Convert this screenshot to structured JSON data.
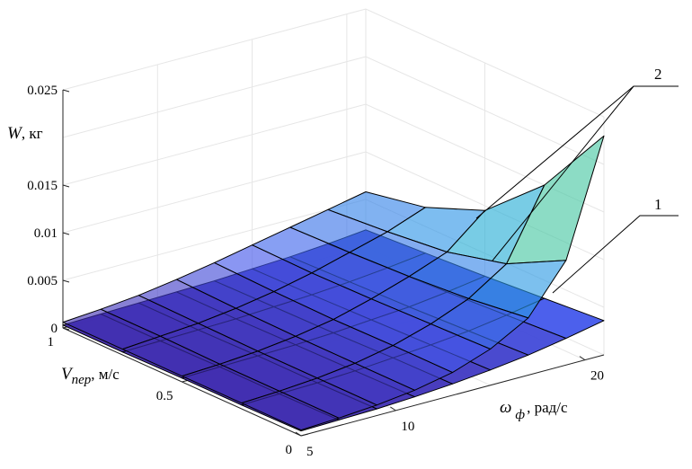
{
  "chart_data": {
    "type": "surface",
    "z_axis": {
      "label_symbol": "W",
      "label_unit": ", кг",
      "ticks": [
        "0",
        "0.005",
        "0.01",
        "0.015",
        "0.025"
      ],
      "range": [
        0,
        0.025
      ]
    },
    "y_axis": {
      "label_symbol": "V",
      "label_subscript": "пер",
      "label_unit": ", м/с",
      "ticks": [
        "0",
        "0.5",
        "1"
      ],
      "range": [
        0,
        1
      ]
    },
    "x_axis": {
      "label_symbol": "ω",
      "label_subscript": "ф",
      "label_unit": ", рад/с",
      "ticks": [
        "5",
        "10",
        "20"
      ],
      "range": [
        5,
        21
      ]
    },
    "grid": "on",
    "omega": [
      5,
      7,
      9,
      11,
      13,
      15,
      17,
      19,
      21
    ],
    "v_per": [
      0,
      0.25,
      0.5,
      0.75,
      1
    ],
    "series": [
      {
        "name": "1",
        "z": [
          [
            0.0005,
            0.0006,
            0.0007,
            0.0009,
            0.0012,
            0.0016,
            0.0021,
            0.0028,
            0.0036
          ],
          [
            0.0004,
            0.0005,
            0.0006,
            0.0008,
            0.0011,
            0.0014,
            0.0018,
            0.0024,
            0.0031
          ],
          [
            0.0004,
            0.0005,
            0.0006,
            0.0007,
            0.0009,
            0.0012,
            0.0015,
            0.002,
            0.0026
          ],
          [
            0.0003,
            0.0004,
            0.0005,
            0.0006,
            0.0008,
            0.001,
            0.0013,
            0.0017,
            0.0022
          ],
          [
            0.0003,
            0.0004,
            0.0005,
            0.0006,
            0.0007,
            0.0009,
            0.0011,
            0.0014,
            0.0018
          ]
        ]
      },
      {
        "name": "2",
        "z": [
          [
            0.0006,
            0.0008,
            0.0011,
            0.0016,
            0.0024,
            0.0038,
            0.006,
            0.011,
            0.023
          ],
          [
            0.0006,
            0.0008,
            0.0011,
            0.0016,
            0.0024,
            0.0036,
            0.0052,
            0.0078,
            0.015
          ],
          [
            0.0006,
            0.0008,
            0.0011,
            0.0016,
            0.0023,
            0.0034,
            0.0047,
            0.0062,
            0.0095
          ],
          [
            0.0006,
            0.0009,
            0.0012,
            0.0017,
            0.0024,
            0.0033,
            0.0044,
            0.0055,
            0.007
          ],
          [
            0.0006,
            0.0009,
            0.0013,
            0.0019,
            0.0026,
            0.0034,
            0.0042,
            0.005,
            0.0058
          ]
        ]
      }
    ],
    "callouts": [
      "1",
      "2"
    ]
  }
}
